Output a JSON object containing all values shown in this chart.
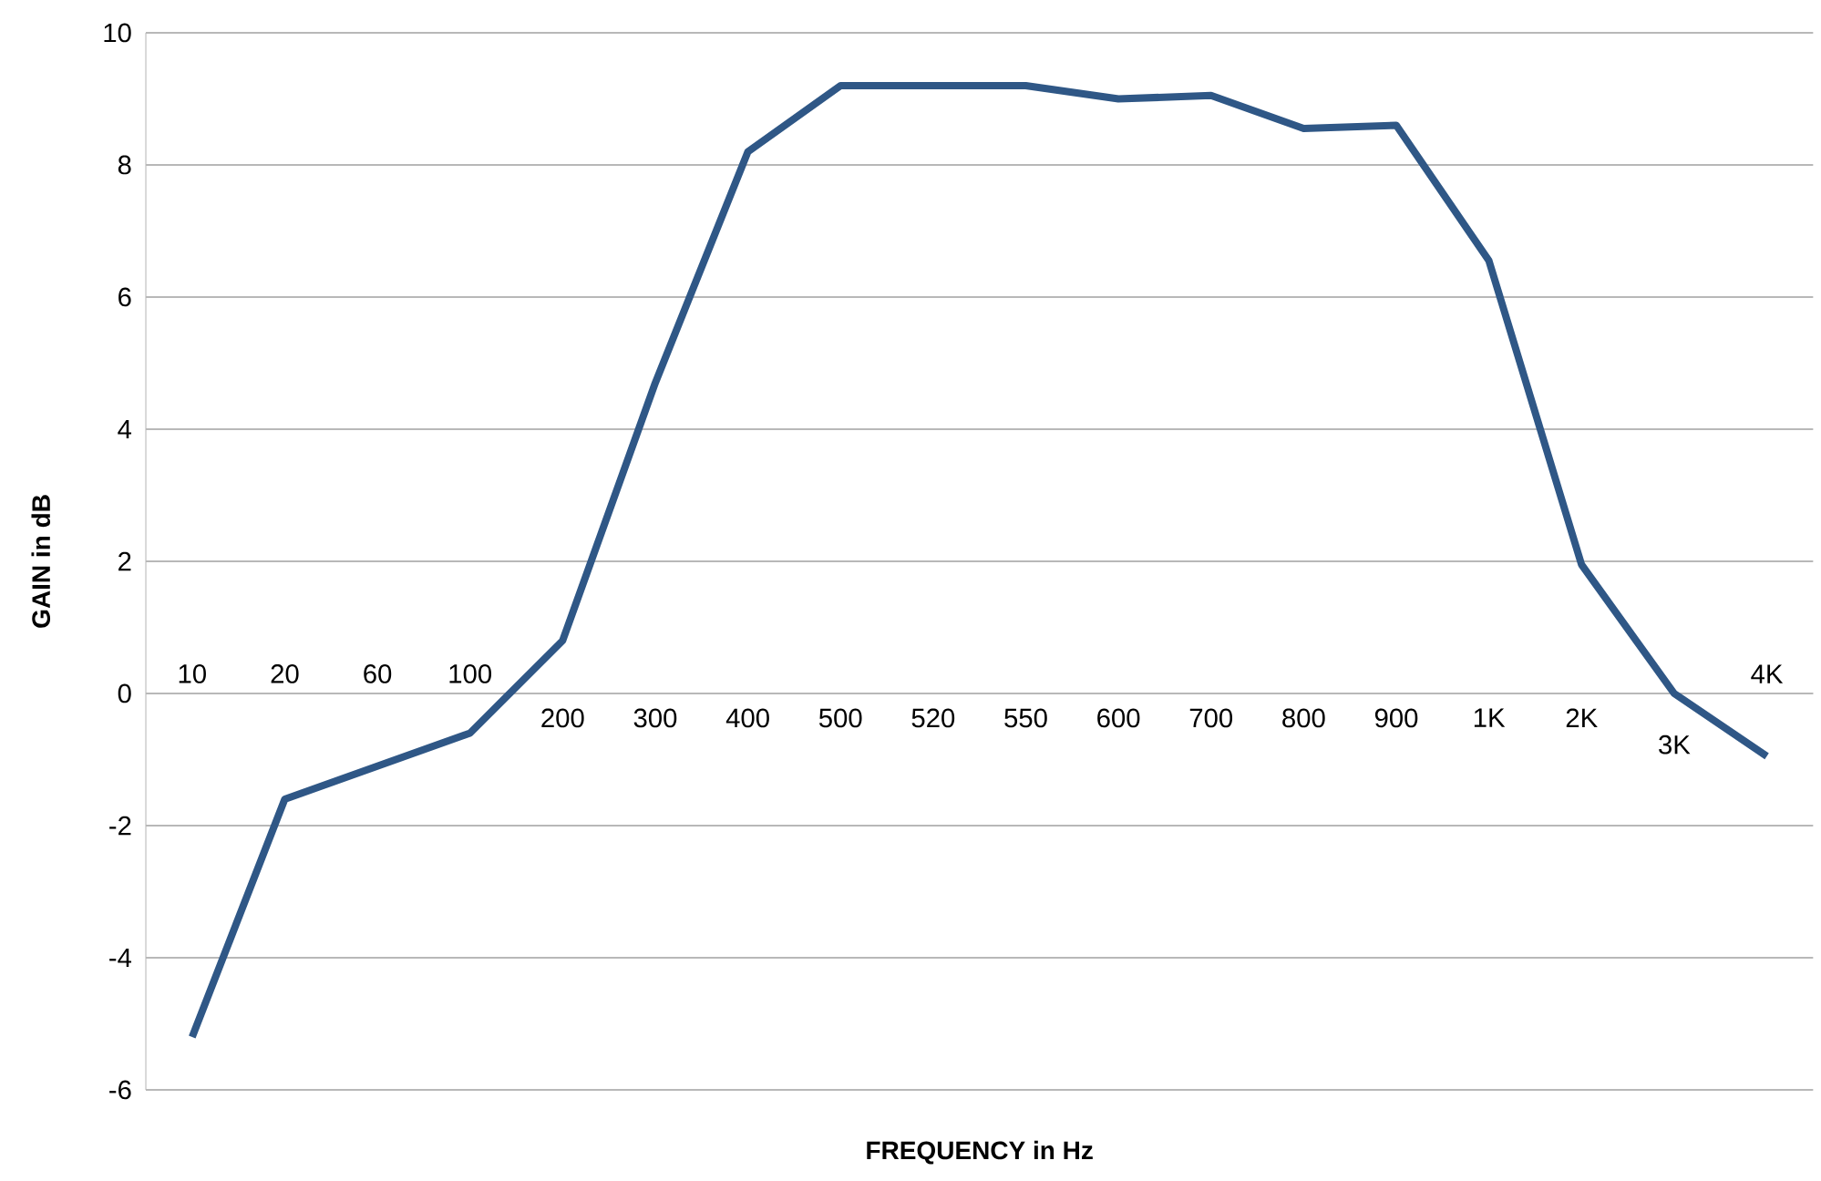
{
  "chart_data": {
    "type": "line",
    "xlabel": "FREQUENCY in Hz",
    "ylabel": "GAIN in dB",
    "categories": [
      "10",
      "20",
      "60",
      "100",
      "200",
      "300",
      "400",
      "500",
      "520",
      "550",
      "600",
      "700",
      "800",
      "900",
      "1K",
      "2K",
      "3K",
      "4K"
    ],
    "series": [
      {
        "color": "#2f5786",
        "values": [
          -5.2,
          -1.6,
          -1.1,
          -0.6,
          0.8,
          4.7,
          8.2,
          9.2,
          9.2,
          9.2,
          9.0,
          9.05,
          8.55,
          8.6,
          6.55,
          1.95,
          0.0,
          -0.95
        ]
      }
    ],
    "ylim": [
      -6,
      10
    ],
    "yticks": [
      -6,
      -4,
      -2,
      0,
      2,
      4,
      6,
      8,
      10
    ],
    "grid": "y",
    "legend": false,
    "marker": "none",
    "line_style": "solid"
  }
}
